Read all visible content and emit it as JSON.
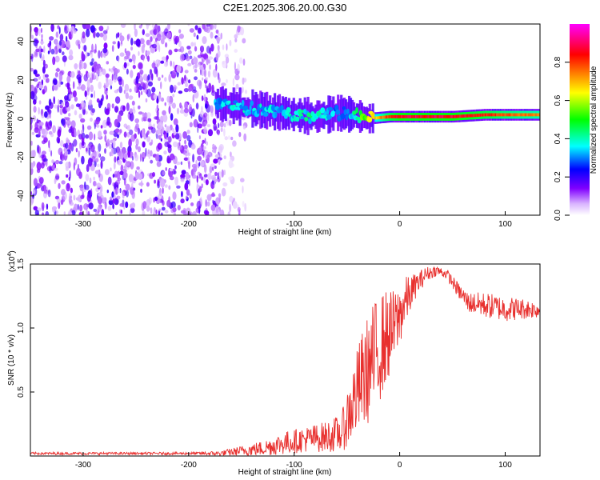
{
  "title": "C2E1.2025.306.20.00.G30",
  "chart_data": [
    {
      "type": "heatmap",
      "xlabel": "Height of straight line (km)",
      "ylabel": "Frequency (Hz)",
      "xlim": [
        -350,
        133
      ],
      "ylim": [
        -50,
        49
      ],
      "x_ticks": [
        -300,
        -200,
        -100,
        0,
        100
      ],
      "x_tick_labels": [
        "-300",
        "-200",
        "-100",
        "0",
        "100"
      ],
      "y_ticks": [
        -40,
        -20,
        0,
        20,
        40
      ],
      "y_tick_labels": [
        "-40",
        "-20",
        "0",
        "20",
        "40"
      ],
      "ridge": {
        "x": [
          -175,
          -150,
          -125,
          -100,
          -80,
          -60,
          -45,
          -30,
          -10,
          0,
          20,
          50,
          80,
          100,
          133
        ],
        "freq": [
          8,
          6,
          4,
          2,
          1,
          3,
          2,
          0,
          1,
          1,
          1,
          1,
          2,
          2,
          2
        ],
        "amplitude": [
          0.3,
          0.35,
          0.35,
          0.35,
          0.4,
          0.3,
          0.35,
          0.6,
          0.85,
          0.9,
          0.9,
          0.9,
          0.85,
          0.8,
          0.75
        ]
      },
      "noise_region_x": [
        -350,
        -170
      ],
      "colorbar": {
        "label": "Normalized spectral amplitude",
        "range": [
          0,
          1
        ],
        "ticks": [
          0,
          0.2,
          0.4,
          0.6,
          0.8
        ],
        "tick_labels": [
          "0.0",
          "0.2",
          "0.4",
          "0.6",
          "0.8"
        ],
        "colors": [
          "#ffffff",
          "#8000ff",
          "#0000ff",
          "#00ffff",
          "#00ff00",
          "#ffff00",
          "#ff8000",
          "#ff0000",
          "#ff00ff"
        ]
      }
    },
    {
      "type": "line",
      "xlabel": "Height of straight line (km)",
      "ylabel": "SNR (10 * v/v)",
      "y_multiplier": "(x10",
      "y_multiplier_exp": "4",
      "y_multiplier_close": ")",
      "xlim": [
        -350,
        133
      ],
      "ylim": [
        0,
        1.5
      ],
      "x_ticks": [
        -300,
        -200,
        -100,
        0,
        100
      ],
      "x_tick_labels": [
        "-300",
        "-200",
        "-100",
        "0",
        "100"
      ],
      "y_ticks": [
        0.5,
        1.0,
        1.5
      ],
      "y_tick_labels": [
        "0.5",
        "1.0",
        "1.5"
      ],
      "line_color": "#e8302e",
      "envelope": {
        "x": [
          -350,
          -200,
          -170,
          -150,
          -130,
          -110,
          -90,
          -70,
          -55,
          -45,
          -35,
          -25,
          -15,
          -5,
          5,
          15,
          25,
          35,
          45,
          55,
          65,
          80,
          100,
          120,
          133
        ],
        "mean": [
          0.02,
          0.02,
          0.02,
          0.04,
          0.06,
          0.1,
          0.13,
          0.15,
          0.18,
          0.4,
          0.6,
          0.75,
          0.9,
          1.0,
          1.2,
          1.33,
          1.42,
          1.45,
          1.42,
          1.3,
          1.2,
          1.18,
          1.15,
          1.15,
          1.14
        ],
        "spread": [
          0.01,
          0.01,
          0.02,
          0.04,
          0.06,
          0.09,
          0.1,
          0.12,
          0.15,
          0.3,
          0.4,
          0.45,
          0.4,
          0.3,
          0.2,
          0.1,
          0.06,
          0.04,
          0.04,
          0.06,
          0.08,
          0.1,
          0.1,
          0.08,
          0.06
        ]
      }
    }
  ]
}
